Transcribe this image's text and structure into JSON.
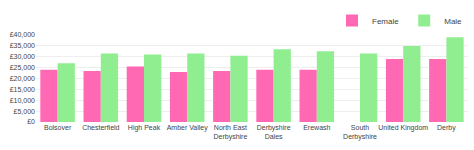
{
  "chart_data": {
    "type": "bar",
    "categories": [
      "Bolsover",
      "Chesterfield",
      "High Peak",
      "Amber Valley",
      "North East\nDerbyshire",
      "Derbyshire\nDales",
      "Erewash",
      "South\nDerbyshire",
      "United Kingdom",
      "Derby"
    ],
    "series": [
      {
        "name": "Female",
        "color": "#FF69B4",
        "values": [
          24000,
          23500,
          25500,
          23000,
          23500,
          24000,
          24000,
          0,
          29000,
          29000
        ]
      },
      {
        "name": "Male",
        "color": "#90EE90",
        "values": [
          27000,
          31500,
          31000,
          31500,
          30500,
          33500,
          32500,
          31500,
          35000,
          39000
        ]
      }
    ],
    "ylim": [
      0,
      40000
    ],
    "yticks": [
      {
        "value": 0,
        "label": "£0"
      },
      {
        "value": 5000,
        "label": "£5,000"
      },
      {
        "value": 10000,
        "label": "£10,000"
      },
      {
        "value": 15000,
        "label": "£15,000"
      },
      {
        "value": 20000,
        "label": "£20,000"
      },
      {
        "value": 25000,
        "label": "£25,000"
      },
      {
        "value": 30000,
        "label": "£30,000"
      },
      {
        "value": 35000,
        "label": "£35,000"
      },
      {
        "value": 40000,
        "label": "£40,000"
      }
    ],
    "grid": true,
    "legend": "upper right"
  }
}
